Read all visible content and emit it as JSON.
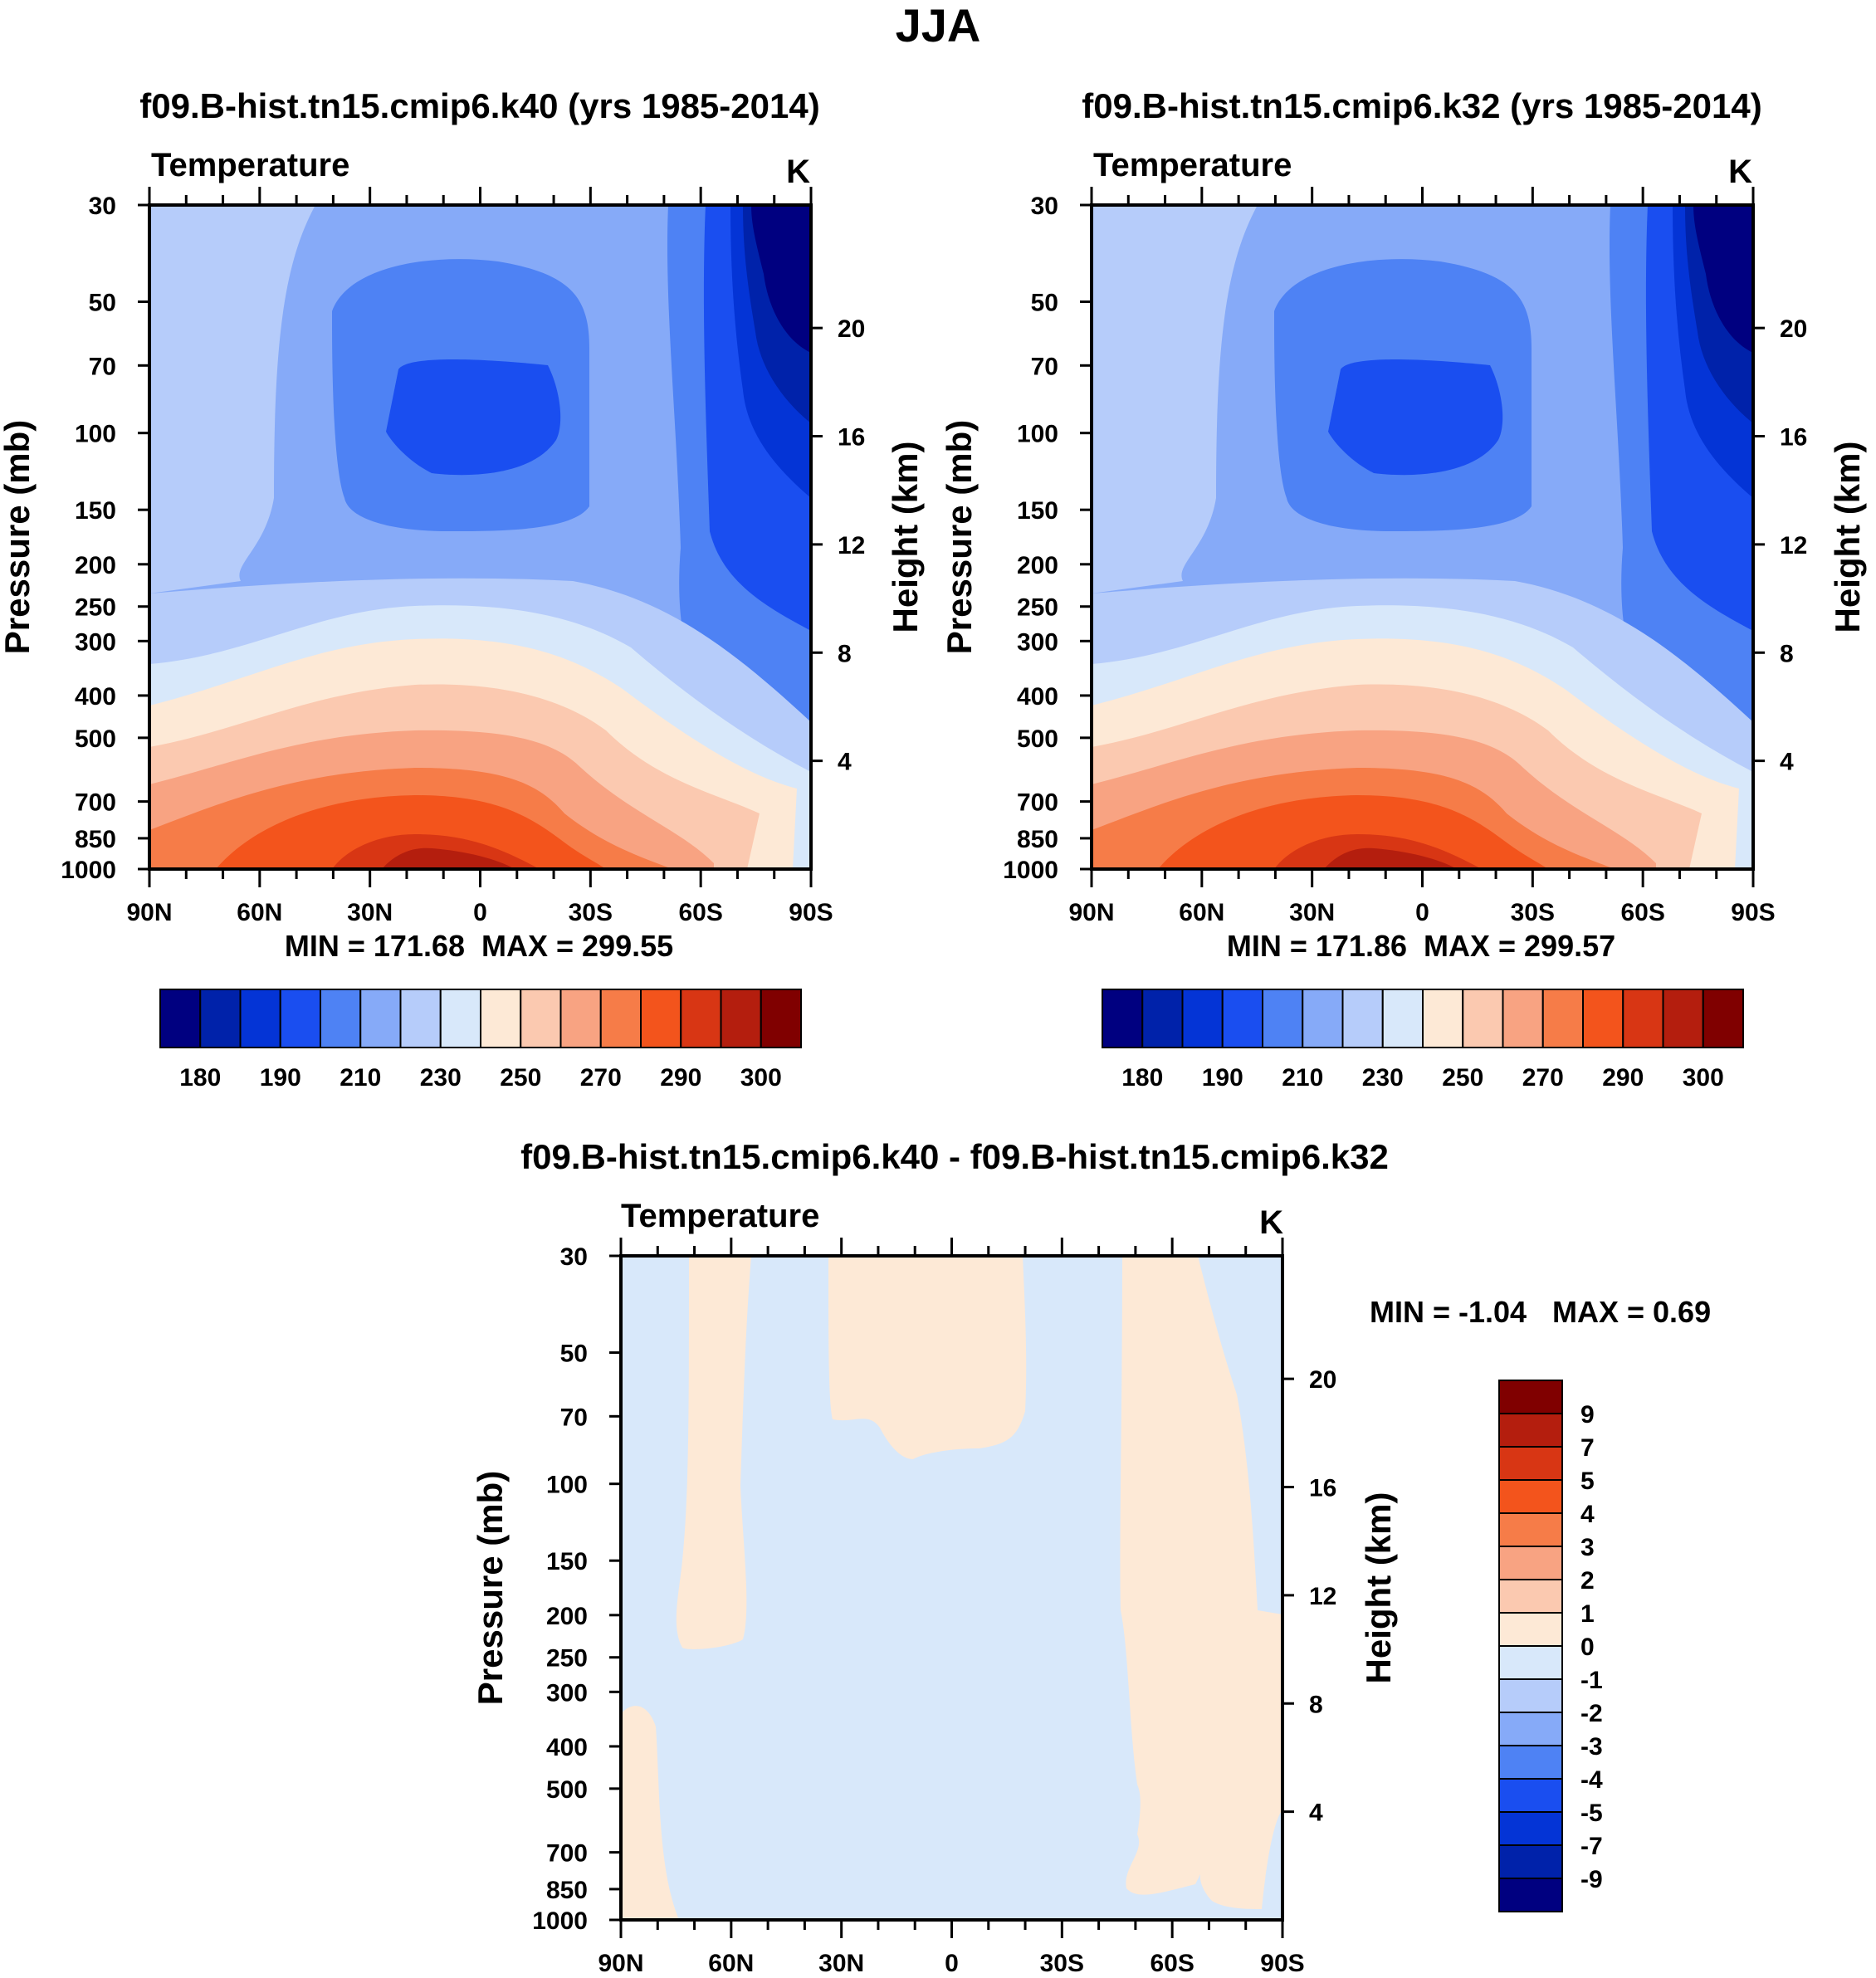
{
  "figure_title": "JJA",
  "colors": {
    "abs_fill": [
      "#000080",
      "#0022aa",
      "#0434d6",
      "#1a4ef0",
      "#4e82f4",
      "#86aaf8",
      "#b6ccfa",
      "#d8e8fa",
      "#fde9d6",
      "#fbc9b0",
      "#f8a382",
      "#f67c48",
      "#f3541c",
      "#d83614",
      "#b41e0e",
      "#800000"
    ],
    "diff_fill": [
      "#000080",
      "#0022aa",
      "#0434d6",
      "#1a4ef0",
      "#4e82f4",
      "#86aaf8",
      "#b6ccfa",
      "#d8e8fa",
      "#fde9d6",
      "#fbc9b0",
      "#f8a382",
      "#f67c48",
      "#f3541c",
      "#d83614",
      "#b41e0e",
      "#800000"
    ]
  },
  "chart_data": [
    {
      "type": "heatmap",
      "subtype": "filled-contour",
      "title": "f09.B-hist.tn15.cmip6.k40 (yrs 1985-2014)",
      "variable_label": "Temperature",
      "units_label": "K",
      "xlabel": "",
      "ylabel": "Pressure (mb)",
      "ylabel_right": "Height (km)",
      "x_ticks": [
        "90N",
        "60N",
        "30N",
        "0",
        "30S",
        "60S",
        "90S"
      ],
      "x_values": [
        90,
        60,
        30,
        0,
        -30,
        -60,
        -90
      ],
      "y_ticks": [
        30,
        50,
        70,
        100,
        150,
        200,
        250,
        300,
        400,
        500,
        700,
        850,
        1000
      ],
      "y_right_ticks": [
        20,
        16,
        12,
        8,
        4
      ],
      "ylim": [
        1000,
        30
      ],
      "min_text": "MIN = 171.68",
      "max_text": "MAX = 299.55",
      "colorbar": {
        "levels": [
          175,
          180,
          185,
          190,
          200,
          210,
          220,
          230,
          240,
          250,
          260,
          270,
          280,
          290,
          295,
          300
        ],
        "tick_labels": [
          "180",
          "190",
          "210",
          "230",
          "250",
          "270",
          "290",
          "300"
        ]
      },
      "field": {
        "description_ok": false,
        "pressure_levels": [
          30,
          50,
          70,
          100,
          150,
          200,
          250,
          300,
          400,
          500,
          700,
          850,
          1000
        ],
        "latitudes": [
          90,
          75,
          60,
          45,
          30,
          15,
          0,
          -15,
          -30,
          -45,
          -60,
          -75,
          -90
        ],
        "values": [
          [
            225,
            226,
            230,
            236,
            238,
            238,
            238,
            238,
            236,
            230,
            205,
            186,
            172
          ],
          [
            226,
            227,
            231,
            222,
            211,
            210,
            210,
            210,
            212,
            226,
            200,
            186,
            175
          ],
          [
            226,
            227,
            232,
            218,
            206,
            203,
            203,
            204,
            210,
            224,
            198,
            190,
            181
          ],
          [
            226,
            227,
            230,
            215,
            204,
            198,
            197,
            199,
            208,
            224,
            198,
            192,
            186
          ],
          [
            226,
            227,
            228,
            218,
            208,
            205,
            203,
            205,
            210,
            222,
            200,
            194,
            190
          ],
          [
            226,
            230,
            232,
            233,
            232,
            230,
            229,
            230,
            229,
            224,
            204,
            196,
            194
          ],
          [
            235,
            236,
            238,
            240,
            240,
            239,
            238,
            236,
            234,
            232,
            214,
            204,
            200
          ],
          [
            245,
            247,
            249,
            250,
            250,
            250,
            249,
            247,
            244,
            236,
            226,
            214,
            210
          ],
          [
            254,
            256,
            258,
            260,
            262,
            262,
            261,
            259,
            255,
            248,
            240,
            228,
            222
          ],
          [
            260,
            262,
            265,
            268,
            270,
            271,
            270,
            268,
            264,
            256,
            248,
            240,
            232
          ],
          [
            268,
            271,
            276,
            280,
            282,
            283,
            282,
            280,
            276,
            268,
            262,
            256,
            250
          ],
          [
            272,
            276,
            281,
            286,
            290,
            291,
            290,
            288,
            284,
            276,
            268,
            262,
            258
          ],
          [
            276,
            280,
            285,
            291,
            297,
            299,
            298,
            296,
            292,
            284,
            274,
            266,
            262
          ]
        ]
      }
    },
    {
      "type": "heatmap",
      "subtype": "filled-contour",
      "title": "f09.B-hist.tn15.cmip6.k32 (yrs 1985-2014)",
      "variable_label": "Temperature",
      "units_label": "K",
      "xlabel": "",
      "ylabel": "Pressure (mb)",
      "ylabel_right": "Height (km)",
      "x_ticks": [
        "90N",
        "60N",
        "30N",
        "0",
        "30S",
        "60S",
        "90S"
      ],
      "x_values": [
        90,
        60,
        30,
        0,
        -30,
        -60,
        -90
      ],
      "y_ticks": [
        30,
        50,
        70,
        100,
        150,
        200,
        250,
        300,
        400,
        500,
        700,
        850,
        1000
      ],
      "y_right_ticks": [
        20,
        16,
        12,
        8,
        4
      ],
      "ylim": [
        1000,
        30
      ],
      "min_text": "MIN = 171.86",
      "max_text": "MAX = 299.57",
      "colorbar": {
        "levels": [
          175,
          180,
          185,
          190,
          200,
          210,
          220,
          230,
          240,
          250,
          260,
          270,
          280,
          290,
          295,
          300
        ],
        "tick_labels": [
          "180",
          "190",
          "210",
          "230",
          "250",
          "270",
          "290",
          "300"
        ]
      },
      "field": {
        "pressure_levels": [
          30,
          50,
          70,
          100,
          150,
          200,
          250,
          300,
          400,
          500,
          700,
          850,
          1000
        ],
        "latitudes": [
          90,
          75,
          60,
          45,
          30,
          15,
          0,
          -15,
          -30,
          -45,
          -60,
          -75,
          -90
        ],
        "values": [
          [
            225,
            226,
            230,
            236,
            238,
            238,
            238,
            238,
            236,
            230,
            205,
            186,
            172
          ],
          [
            226,
            227,
            231,
            222,
            211,
            210,
            210,
            210,
            212,
            226,
            200,
            186,
            175
          ],
          [
            226,
            227,
            232,
            218,
            206,
            203,
            203,
            204,
            210,
            224,
            198,
            190,
            181
          ],
          [
            226,
            227,
            230,
            215,
            204,
            198,
            197,
            199,
            208,
            224,
            198,
            192,
            186
          ],
          [
            226,
            227,
            228,
            218,
            208,
            205,
            203,
            205,
            210,
            222,
            200,
            194,
            190
          ],
          [
            226,
            230,
            232,
            233,
            232,
            230,
            229,
            230,
            229,
            224,
            204,
            196,
            194
          ],
          [
            235,
            236,
            238,
            240,
            240,
            239,
            238,
            236,
            234,
            232,
            214,
            204,
            200
          ],
          [
            245,
            247,
            249,
            250,
            250,
            250,
            249,
            247,
            244,
            236,
            226,
            214,
            210
          ],
          [
            254,
            256,
            258,
            260,
            262,
            262,
            261,
            259,
            255,
            248,
            240,
            228,
            222
          ],
          [
            260,
            262,
            265,
            268,
            270,
            271,
            270,
            268,
            264,
            256,
            248,
            240,
            232
          ],
          [
            268,
            271,
            276,
            280,
            282,
            283,
            282,
            280,
            276,
            268,
            262,
            256,
            250
          ],
          [
            272,
            276,
            281,
            286,
            290,
            291,
            290,
            288,
            284,
            276,
            268,
            262,
            258
          ],
          [
            276,
            280,
            285,
            291,
            297,
            299,
            298,
            296,
            292,
            284,
            274,
            266,
            262
          ]
        ]
      }
    },
    {
      "type": "heatmap",
      "subtype": "filled-contour-difference",
      "title": "f09.B-hist.tn15.cmip6.k40 - f09.B-hist.tn15.cmip6.k32",
      "variable_label": "Temperature",
      "units_label": "K",
      "xlabel": "",
      "ylabel": "Pressure (mb)",
      "ylabel_right": "Height (km)",
      "x_ticks": [
        "90N",
        "60N",
        "30N",
        "0",
        "30S",
        "60S",
        "90S"
      ],
      "x_values": [
        90,
        60,
        30,
        0,
        -30,
        -60,
        -90
      ],
      "y_ticks": [
        30,
        50,
        70,
        100,
        150,
        200,
        250,
        300,
        400,
        500,
        700,
        850,
        1000
      ],
      "y_right_ticks": [
        20,
        16,
        12,
        8,
        4
      ],
      "ylim": [
        1000,
        30
      ],
      "min_text": "MIN =  -1.04",
      "max_text": "MAX =   0.69",
      "colorbar": {
        "levels": [
          -9,
          -7,
          -5,
          -4,
          -3,
          -2,
          -1,
          0,
          1,
          2,
          3,
          4,
          5,
          7,
          9
        ],
        "tick_labels": [
          "9",
          "7",
          "5",
          "4",
          "3",
          "2",
          "1",
          "0",
          "-1",
          "-2",
          "-3",
          "-4",
          "-5",
          "-7",
          "-9"
        ]
      },
      "field": {
        "background_range": "-1 to 0",
        "positive_regions_range": "0 to 1",
        "positive_regions_latitudes": [
          [
            72,
            58
          ],
          [
            34,
            0
          ],
          [
            -45,
            -82
          ],
          [
            90,
            75
          ]
        ]
      }
    }
  ]
}
